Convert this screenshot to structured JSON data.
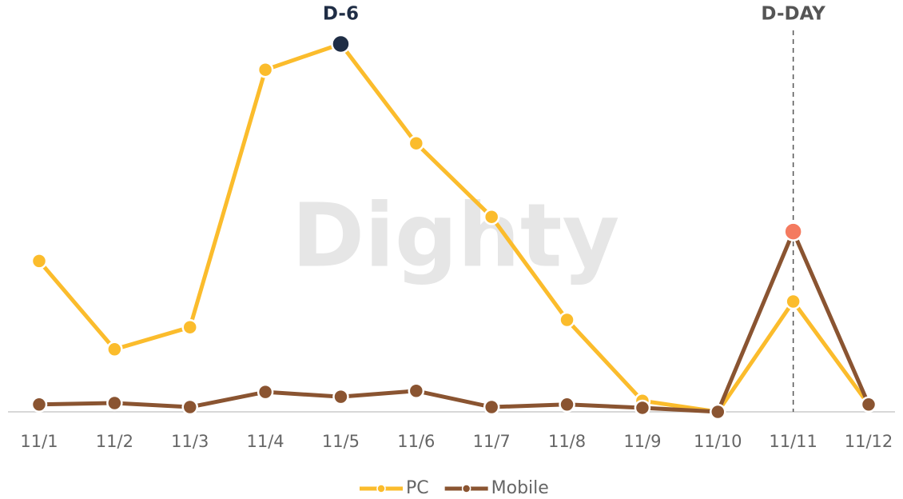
{
  "chart_data": {
    "type": "line",
    "watermark": "Dighty",
    "categories": [
      "11/1",
      "11/2",
      "11/3",
      "11/4",
      "11/5",
      "11/6",
      "11/7",
      "11/8",
      "11/9",
      "11/10",
      "11/11",
      "11/12"
    ],
    "series": [
      {
        "name": "PC",
        "color": "#fbbc2c",
        "values": [
          41,
          17,
          23,
          93,
          100,
          73,
          53,
          25,
          3,
          0,
          30,
          2
        ]
      },
      {
        "name": "Mobile",
        "color": "#8a5431",
        "values": [
          2,
          2.4,
          1.3,
          5.4,
          4.1,
          5.7,
          1.3,
          2,
          1.1,
          0,
          49,
          2
        ]
      }
    ],
    "ylim": [
      0,
      100
    ],
    "annotations": [
      {
        "text": "D-6",
        "x": "11/5",
        "series": "PC",
        "color": "#1f2d45",
        "dashed_line": false
      },
      {
        "text": "D-DAY",
        "x": "11/11",
        "series": "Mobile",
        "color": "#f47a5f",
        "dashed_line": true
      }
    ],
    "legend": "bottom"
  }
}
